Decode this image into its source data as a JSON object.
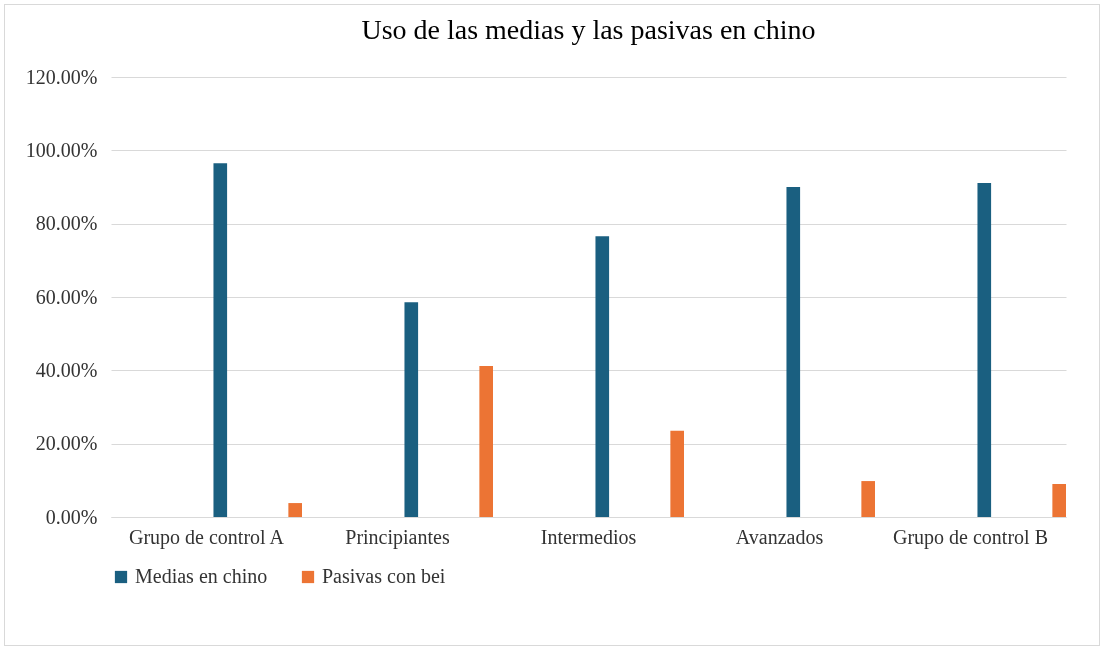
{
  "chart_data": {
    "type": "bar",
    "title": "Uso de las medias y las pasivas en chino",
    "categories": [
      "Grupo de control A",
      "Principiantes",
      "Intermedios",
      "Avanzados",
      "Grupo de control B"
    ],
    "series": [
      {
        "name": "Medias en chino",
        "color": "#1a5f80",
        "values": [
          96.5,
          58.6,
          76.6,
          90.0,
          91.1
        ]
      },
      {
        "name": "Pasivas con bei",
        "color": "#ec7434",
        "values": [
          3.8,
          41.2,
          23.5,
          9.8,
          9.0
        ]
      }
    ],
    "ylim": [
      0,
      120
    ],
    "yticks": [
      {
        "value": 0,
        "label": "0.00%"
      },
      {
        "value": 20,
        "label": "20.00%"
      },
      {
        "value": 40,
        "label": "40.00%"
      },
      {
        "value": 60,
        "label": "60.00%"
      },
      {
        "value": 80,
        "label": "80.00%"
      },
      {
        "value": 100,
        "label": "100.00%"
      },
      {
        "value": 120,
        "label": "120.00%"
      }
    ],
    "grid": "y",
    "legend": "bottom"
  }
}
